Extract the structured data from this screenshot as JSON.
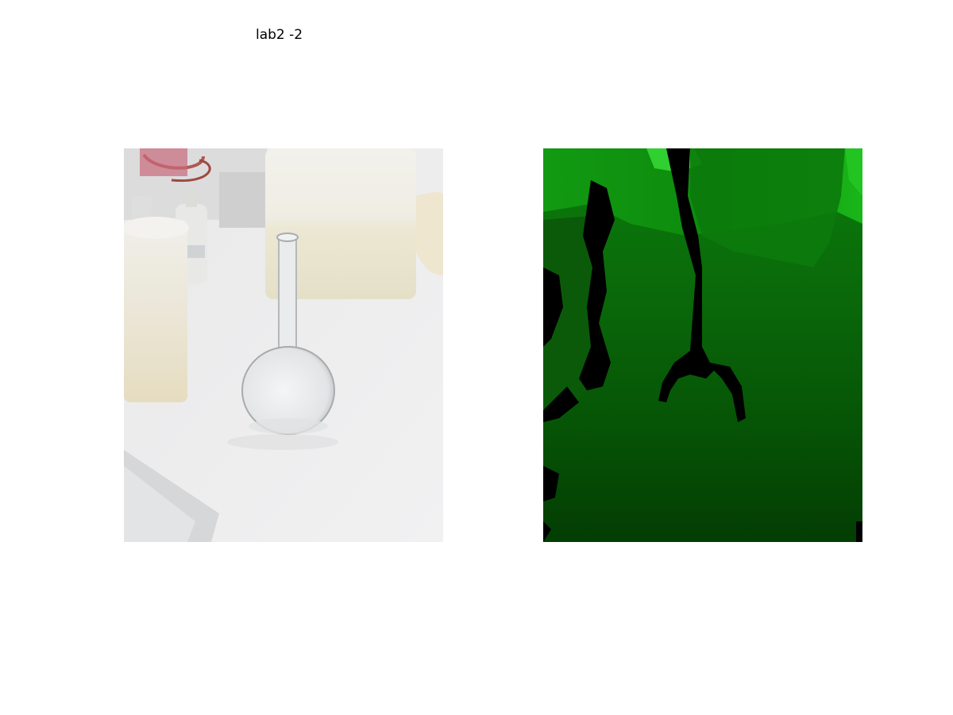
{
  "figure": {
    "title": "lab2 -2"
  },
  "panels": [
    {
      "content": "rgb-photo"
    },
    {
      "content": "depth-map"
    }
  ],
  "colors": {
    "background": "#ffffff",
    "depth_bright": "#22c422",
    "depth_dark": "#003300",
    "depth_hole": "#000000"
  }
}
